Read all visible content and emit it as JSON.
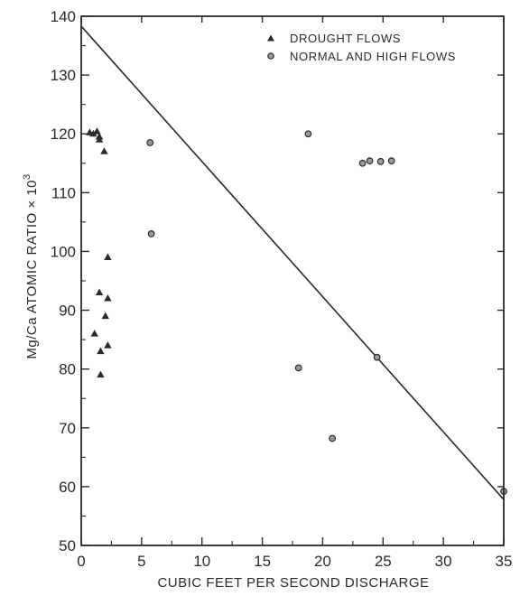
{
  "chart_data": {
    "type": "scatter",
    "xlabel": "CUBIC FEET PER SECOND DISCHARGE",
    "ylabel": "Mg/Ca ATOMIC RATIO × 10",
    "ylabel_sup": "3",
    "xlim": [
      0,
      35
    ],
    "ylim": [
      50,
      140
    ],
    "xticks": [
      0,
      5,
      10,
      15,
      20,
      25,
      30,
      35
    ],
    "yticks": [
      50,
      60,
      70,
      80,
      90,
      100,
      110,
      120,
      130,
      140
    ],
    "xtick_labels": [
      "0",
      "5",
      "10",
      "15",
      "20",
      "25",
      "30",
      "35"
    ],
    "ytick_labels": [
      "50",
      "60",
      "70",
      "80",
      "90",
      "100",
      "110",
      "120",
      "130",
      "140"
    ],
    "grid": false,
    "legend_position": "top-right",
    "series": [
      {
        "name": "DROUGHT FLOWS",
        "marker": "triangle",
        "color": "#2a2a2a",
        "points": [
          [
            0.7,
            120.2
          ],
          [
            1.0,
            120.0
          ],
          [
            1.3,
            120.4
          ],
          [
            1.5,
            119.5
          ],
          [
            1.5,
            119.0
          ],
          [
            1.9,
            117.0
          ],
          [
            2.2,
            99.0
          ],
          [
            1.5,
            93.0
          ],
          [
            2.2,
            92.0
          ],
          [
            2.0,
            89.0
          ],
          [
            1.1,
            86.0
          ],
          [
            2.2,
            84.0
          ],
          [
            1.6,
            83.0
          ],
          [
            1.6,
            79.0
          ]
        ]
      },
      {
        "name": "NORMAL AND HIGH FLOWS",
        "marker": "circle",
        "color": "#2a2a2a",
        "points": [
          [
            5.7,
            118.5
          ],
          [
            5.8,
            103.0
          ],
          [
            18.8,
            120.0
          ],
          [
            23.3,
            115.0
          ],
          [
            23.9,
            115.4
          ],
          [
            24.8,
            115.3
          ],
          [
            25.7,
            115.4
          ],
          [
            18.0,
            80.2
          ],
          [
            24.5,
            82.0
          ],
          [
            20.8,
            68.2
          ],
          [
            35.0,
            59.2
          ]
        ]
      }
    ],
    "trend_line": {
      "x": [
        0,
        35
      ],
      "y": [
        138.3,
        57.8
      ]
    }
  }
}
